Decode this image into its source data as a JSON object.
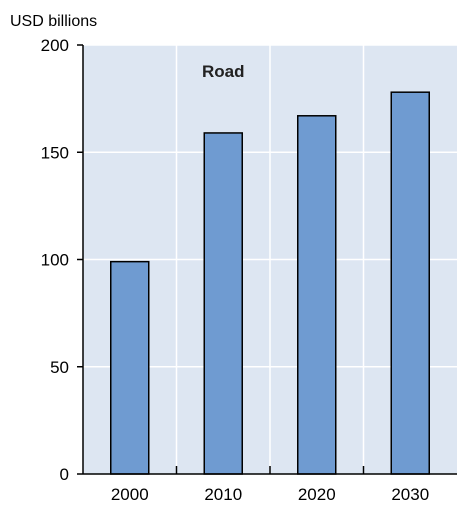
{
  "chart_data": {
    "type": "bar",
    "title": "Road",
    "ylabel": "USD billions",
    "xlabel": "",
    "categories": [
      "2000",
      "2010",
      "2020",
      "2030"
    ],
    "values": [
      99,
      159,
      167,
      178
    ],
    "ylim": [
      0,
      200
    ],
    "yticks": [
      0,
      50,
      100,
      150,
      200
    ],
    "grid": true,
    "colors": {
      "plot_background": "#dde6f2",
      "bar_fill": "#6f9bd1",
      "bar_stroke": "#000000",
      "grid": "#ffffff",
      "axis": "#000000",
      "text": "#000000"
    }
  }
}
